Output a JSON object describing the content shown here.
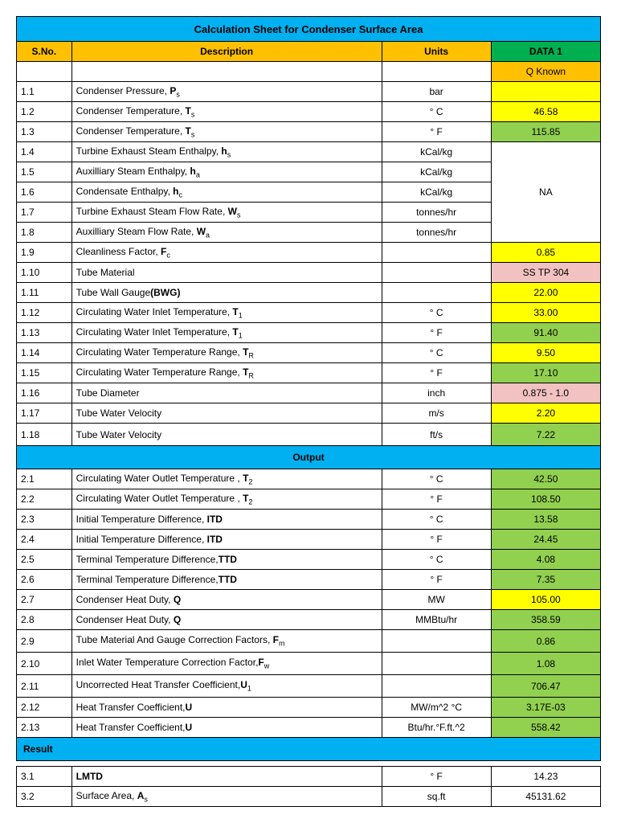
{
  "colors": {
    "headerBlue": "#00b0f0",
    "orange": "#ffc000",
    "greenHead": "#00b050",
    "yellow": "#ffff00",
    "green": "#92d050",
    "pink": "#f2c2c2",
    "white": "#ffffff"
  },
  "title": "Calculation Sheet for Condenser Surface Area",
  "headers": {
    "sno": "S.No.",
    "desc": "Description",
    "units": "Units",
    "data": "DATA 1",
    "sub": "Q Known"
  },
  "sections": {
    "output": "Output",
    "result": "Result"
  },
  "na": "NA",
  "rows": [
    {
      "sno": "1.1",
      "desc": "Condenser Pressure, ",
      "sym": "P",
      "sub": "s",
      "units": "bar",
      "val": "",
      "bg": "yellow"
    },
    {
      "sno": "1.2",
      "desc": "Condenser Temperature, ",
      "sym": "T",
      "sub": "s",
      "units": "° C",
      "val": "46.58",
      "bg": "yellow"
    },
    {
      "sno": "1.3",
      "desc": "Condenser Temperature, ",
      "sym": "T",
      "sub": "s",
      "units": "° F",
      "val": "115.85",
      "bg": "green"
    },
    {
      "sno": "1.4",
      "desc": "Turbine Exhaust Steam Enthalpy, ",
      "sym": "h",
      "sub": "s",
      "units": "kCal/kg",
      "val": "",
      "bg": "na"
    },
    {
      "sno": "1.5",
      "desc": "Auxilliary Steam Enthalpy, ",
      "sym": "h",
      "sub": "a",
      "units": "kCal/kg",
      "val": "",
      "bg": "na"
    },
    {
      "sno": "1.6",
      "desc": "Condensate Enthalpy, ",
      "sym": "h",
      "sub": "c",
      "units": "kCal/kg",
      "val": "NA",
      "bg": "na"
    },
    {
      "sno": "1.7",
      "desc": "Turbine Exhaust Steam Flow Rate, ",
      "sym": "W",
      "sub": "s",
      "units": "tonnes/hr",
      "val": "",
      "bg": "na"
    },
    {
      "sno": "1.8",
      "desc": "Auxilliary Steam Flow Rate, ",
      "sym": "W",
      "sub": "a",
      "units": "tonnes/hr",
      "val": "",
      "bg": "na"
    },
    {
      "sno": "1.9",
      "desc": "Cleanliness Factor, ",
      "sym": "F",
      "sub": "c",
      "units": "",
      "val": "0.85",
      "bg": "yellow"
    },
    {
      "sno": "1.10",
      "desc": "Tube Material",
      "sym": "",
      "sub": "",
      "units": "",
      "val": "SS TP 304",
      "bg": "pink"
    },
    {
      "sno": "1.11",
      "desc": "Tube Wall Gauge",
      "sym": "(BWG)",
      "sub": "",
      "units": "",
      "val": "22.00",
      "bg": "yellow"
    },
    {
      "sno": "1.12",
      "desc": "Circulating Water Inlet Temperature, ",
      "sym": "T",
      "sub": "1",
      "units": "° C",
      "val": "33.00",
      "bg": "yellow"
    },
    {
      "sno": "1.13",
      "desc": "Circulating Water Inlet Temperature, ",
      "sym": "T",
      "sub": "1",
      "units": "° F",
      "val": "91.40",
      "bg": "green"
    },
    {
      "sno": "1.14",
      "desc": "Circulating Water Temperature Range, ",
      "sym": "T",
      "sub": "R",
      "units": "° C",
      "val": "9.50",
      "bg": "yellow"
    },
    {
      "sno": "1.15",
      "desc": "Circulating Water Temperature Range, ",
      "sym": "T",
      "sub": "R",
      "units": "° F",
      "val": "17.10",
      "bg": "green"
    },
    {
      "sno": "1.16",
      "desc": "Tube Diameter",
      "sym": "",
      "sub": "",
      "units": "inch",
      "val": "0.875 - 1.0",
      "bg": "pink"
    },
    {
      "sno": "1.17",
      "desc": "Tube Water Velocity",
      "sym": "",
      "sub": "",
      "units": "m/s",
      "val": "2.20",
      "bg": "yellow"
    },
    {
      "sno": "1.18",
      "desc": "Tube Water Velocity",
      "sym": "",
      "sub": "",
      "units": "ft/s",
      "val": "7.22",
      "bg": "green",
      "tall": true
    }
  ],
  "output": [
    {
      "sno": "2.1",
      "desc": "Circulating Water Outlet Temperature , ",
      "sym": "T",
      "sub": "2",
      "units": "° C",
      "val": "42.50",
      "bg": "green"
    },
    {
      "sno": "2.2",
      "desc": "Circulating Water Outlet Temperature , ",
      "sym": "T",
      "sub": "2",
      "units": "° F",
      "val": "108.50",
      "bg": "green"
    },
    {
      "sno": "2.3",
      "desc": "Initial Temperature Difference, ",
      "sym": "ITD",
      "sub": "",
      "units": "° C",
      "val": "13.58",
      "bg": "green"
    },
    {
      "sno": "2.4",
      "desc": "Initial Temperature Difference, ",
      "sym": "ITD",
      "sub": "",
      "units": "° F",
      "val": "24.45",
      "bg": "green"
    },
    {
      "sno": "2.5",
      "desc": "Terminal Temperature Difference,",
      "sym": "TTD",
      "sub": "",
      "units": "° C",
      "val": "4.08",
      "bg": "green"
    },
    {
      "sno": "2.6",
      "desc": "Terminal Temperature Difference,",
      "sym": "TTD",
      "sub": "",
      "units": "° F",
      "val": "7.35",
      "bg": "green"
    },
    {
      "sno": "2.7",
      "desc": "Condenser Heat Duty, ",
      "sym": "Q",
      "sub": "",
      "units": "MW",
      "val": "105.00",
      "bg": "yellow"
    },
    {
      "sno": "2.8",
      "desc": "Condenser Heat Duty, ",
      "sym": "Q",
      "sub": "",
      "units": "MMBtu/hr",
      "val": "358.59",
      "bg": "green"
    },
    {
      "sno": "2.9",
      "desc": "Tube Material And Gauge Correction Factors, ",
      "sym": "F",
      "sub": "m",
      "units": "",
      "val": "0.86",
      "bg": "green",
      "tall": true
    },
    {
      "sno": "2.10",
      "desc": "Inlet Water Temperature Correction Factor,",
      "sym": "F",
      "sub": "w",
      "units": "",
      "val": "1.08",
      "bg": "green",
      "tall": true
    },
    {
      "sno": "2.11",
      "desc": "Uncorrected Heat Transfer Coefficient,",
      "sym": "U",
      "sub": "1",
      "units": "",
      "val": "706.47",
      "bg": "green",
      "tall": true
    },
    {
      "sno": "2.12",
      "desc": "Heat Transfer Coefficient,",
      "sym": "U",
      "sub": "",
      "units": "MW/m^2 °C",
      "val": "3.17E-03",
      "bg": "green"
    },
    {
      "sno": "2.13",
      "desc": "Heat Transfer Coefficient,",
      "sym": "U",
      "sub": "",
      "units": "Btu/hr.°F.ft.^2",
      "val": "558.42",
      "bg": "green"
    }
  ],
  "result": [
    {
      "sno": "3.1",
      "desc": "",
      "sym": "LMTD",
      "sub": "",
      "units": "° F",
      "val": "14.23",
      "bg": "white"
    },
    {
      "sno": "3.2",
      "desc": "Surface Area, ",
      "sym": "A",
      "sub": "s",
      "units": "sq.ft",
      "val": "45131.62",
      "bg": "white"
    }
  ]
}
